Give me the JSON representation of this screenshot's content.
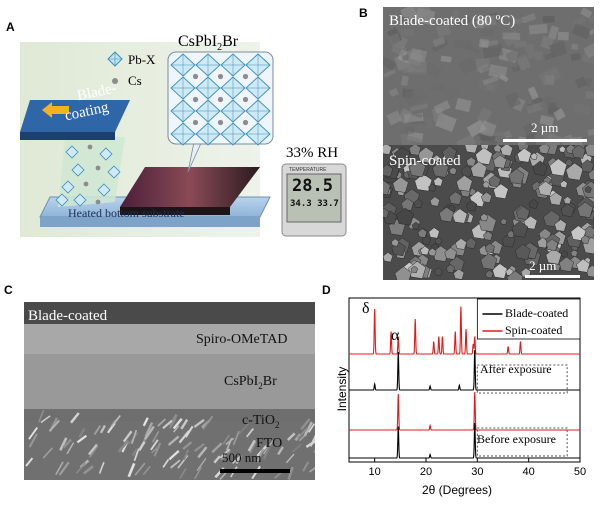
{
  "panel_a": {
    "label": "A",
    "legend_pbx": "Pb-X",
    "legend_cs": "Cs",
    "crystal_title": "CsPbI",
    "crystal_title_sub1": "2",
    "crystal_title_rest": "Br",
    "blade_line1": "Blade-",
    "blade_line2": "coating",
    "rh": "33% RH",
    "substrate": "Heated bottom substrate",
    "hygro_temp": "28.5",
    "hygro_hum": "34.3",
    "hygro_hum2": "33.7",
    "hygro_header": "TEMPERATURE"
  },
  "panel_b": {
    "label": "B",
    "top_title": "Blade-coated (80 ºC)",
    "top_scale": "2 µm",
    "bottom_title": "Spin-coated",
    "bottom_scale": "2 µm"
  },
  "panel_c": {
    "label": "C",
    "title": "Blade-coated",
    "layer1": "Spiro-OMeTAD",
    "layer2_main": "CsPbI",
    "layer2_sub": "2",
    "layer2_rest": "Br",
    "layer3_main": "c-TiO",
    "layer3_sub": "2",
    "layer4": "FTO",
    "scale": "500 nm"
  },
  "panel_d": {
    "label": "D",
    "ylabel": "Intensity",
    "xlabel": "2θ (Degrees)",
    "legend_blade": "Blade-coated",
    "legend_spin": "Spin-coated",
    "ann_after": "After exposure",
    "ann_before": "Before exposure",
    "delta": "δ",
    "alpha": "α",
    "xticks": [
      "10",
      "20",
      "30",
      "40",
      "50"
    ],
    "colors": {
      "blade": "#000000",
      "spin": "#e31a1c"
    }
  },
  "chart_data": {
    "type": "line",
    "xlabel": "2θ (Degrees)",
    "ylabel": "Intensity",
    "xlim": [
      5,
      50
    ],
    "series": [
      {
        "name": "Spin-coated",
        "group": "After exposure",
        "peaks": [
          [
            10,
            0.9
          ],
          [
            13.2,
            0.45
          ],
          [
            14.6,
            0.35
          ],
          [
            17.9,
            0.7
          ],
          [
            21.5,
            0.25
          ],
          [
            22.5,
            0.35
          ],
          [
            23.2,
            0.35
          ],
          [
            25.7,
            0.45
          ],
          [
            26.8,
            0.95
          ],
          [
            27.8,
            0.5
          ],
          [
            29.2,
            0.2
          ],
          [
            29.5,
            0.35
          ],
          [
            36,
            0.15
          ],
          [
            38.4,
            0.25
          ]
        ]
      },
      {
        "name": "Blade-coated",
        "group": "After exposure",
        "peaks": [
          [
            10,
            0.15
          ],
          [
            14.6,
            0.95
          ],
          [
            20.8,
            0.1
          ],
          [
            26.5,
            0.12
          ],
          [
            29.5,
            1.0
          ]
        ]
      },
      {
        "name": "Spin-coated",
        "group": "Before exposure",
        "peaks": [
          [
            14.6,
            0.95
          ],
          [
            20.8,
            0.12
          ],
          [
            29.5,
            1.0
          ]
        ]
      },
      {
        "name": "Blade-coated",
        "group": "Before exposure",
        "peaks": [
          [
            14.6,
            0.9
          ],
          [
            20.8,
            0.1
          ],
          [
            29.5,
            1.0
          ]
        ]
      }
    ]
  }
}
